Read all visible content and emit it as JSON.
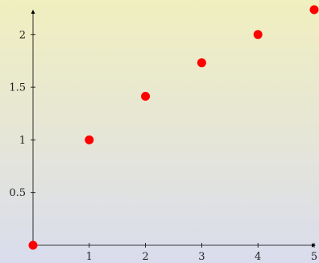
{
  "chart_data": {
    "type": "scatter",
    "title": "",
    "xlabel": "",
    "ylabel": "",
    "points": [
      {
        "x": 0,
        "y": 0
      },
      {
        "x": 1,
        "y": 1
      },
      {
        "x": 2,
        "y": 1.414
      },
      {
        "x": 3,
        "y": 1.732
      },
      {
        "x": 4,
        "y": 2
      },
      {
        "x": 5,
        "y": 2.236
      }
    ],
    "xticks": [
      {
        "value": 1,
        "label": "1"
      },
      {
        "value": 2,
        "label": "2"
      },
      {
        "value": 3,
        "label": "3"
      },
      {
        "value": 4,
        "label": "4"
      },
      {
        "value": 5,
        "label": "5"
      }
    ],
    "yticks": [
      {
        "value": 0.5,
        "label": "0.5"
      },
      {
        "value": 1,
        "label": "1"
      },
      {
        "value": 1.5,
        "label": "1.5"
      },
      {
        "value": 2,
        "label": "2"
      }
    ],
    "xlim": [
      0,
      5
    ],
    "ylim": [
      0,
      2.2
    ],
    "grid": false,
    "marker_color": "#ff0000",
    "axis_color": "#000000"
  }
}
